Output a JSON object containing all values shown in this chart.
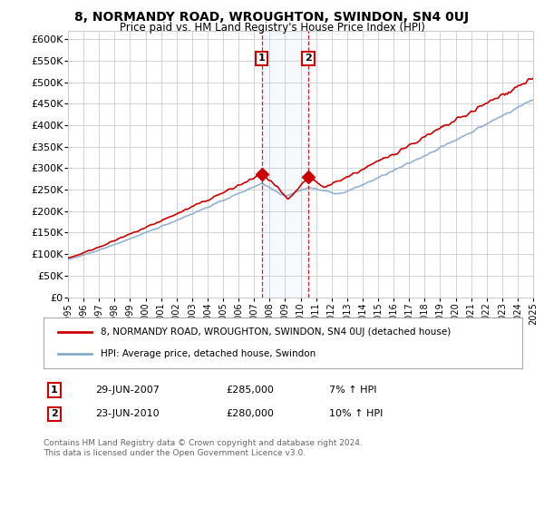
{
  "title_line1": "8, NORMANDY ROAD, WROUGHTON, SWINDON, SN4 0UJ",
  "title_line2": "Price paid vs. HM Land Registry's House Price Index (HPI)",
  "ylim": [
    0,
    620000
  ],
  "yticks": [
    0,
    50000,
    100000,
    150000,
    200000,
    250000,
    300000,
    350000,
    400000,
    450000,
    500000,
    550000,
    600000
  ],
  "ytick_labels": [
    "£0",
    "£50K",
    "£100K",
    "£150K",
    "£200K",
    "£250K",
    "£300K",
    "£350K",
    "£400K",
    "£450K",
    "£500K",
    "£550K",
    "£600K"
  ],
  "legend_line1": "8, NORMANDY ROAD, WROUGHTON, SWINDON, SN4 0UJ (detached house)",
  "legend_line2": "HPI: Average price, detached house, Swindon",
  "annotation1_date": "29-JUN-2007",
  "annotation1_price": "£285,000",
  "annotation1_hpi": "7% ↑ HPI",
  "annotation2_date": "23-JUN-2010",
  "annotation2_price": "£280,000",
  "annotation2_hpi": "10% ↑ HPI",
  "footer": "Contains HM Land Registry data © Crown copyright and database right 2024.\nThis data is licensed under the Open Government Licence v3.0.",
  "red_color": "#cc0000",
  "blue_color": "#88aacc",
  "marker1_x": 2007.5,
  "marker2_x": 2010.5,
  "shade_color": "#ddeeff",
  "bg_color": "#ffffff",
  "grid_color": "#cccccc"
}
